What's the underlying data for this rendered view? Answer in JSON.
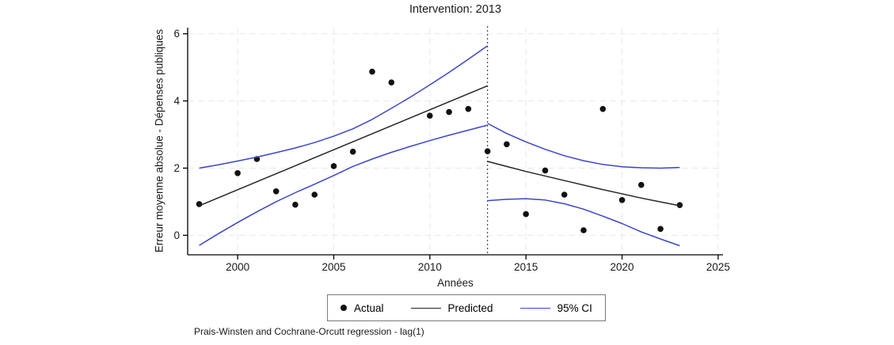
{
  "chart_data": {
    "type": "scatter",
    "title": "Intervention: 2013",
    "xlabel": "Années",
    "ylabel": "Erreur moyenne absolue - Dépenses publiques",
    "note": "Prais-Winsten and Cochrane-Orcutt regression - lag(1)",
    "intervention_x": 2013,
    "x_ticks": [
      2000,
      2005,
      2010,
      2015,
      2020,
      2025
    ],
    "y_ticks": [
      0,
      2,
      4,
      6
    ],
    "xlim": [
      1997.4,
      2025.25
    ],
    "ylim": [
      -0.58,
      6.18
    ],
    "grid": true,
    "legend_position": "bottom",
    "colors": {
      "actual": "#111111",
      "predicted": "#262626",
      "ci": "#3a46c8",
      "gridline": "#e9e9e9",
      "axis": "#000000",
      "intervention_line": "#454545"
    },
    "series": [
      {
        "name": "Actual",
        "kind": "scatter",
        "color": "#111111",
        "points": [
          [
            1998,
            0.93
          ],
          [
            2000,
            1.85
          ],
          [
            2001,
            2.27
          ],
          [
            2002,
            1.31
          ],
          [
            2003,
            0.91
          ],
          [
            2004,
            1.21
          ],
          [
            2005,
            2.06
          ],
          [
            2006,
            2.49
          ],
          [
            2007,
            4.87
          ],
          [
            2008,
            4.55
          ],
          [
            2010,
            3.56
          ],
          [
            2011,
            3.67
          ],
          [
            2012,
            3.76
          ],
          [
            2013,
            2.5
          ],
          [
            2014,
            2.71
          ],
          [
            2015,
            0.63
          ],
          [
            2016,
            1.93
          ],
          [
            2017,
            1.21
          ],
          [
            2018,
            0.15
          ],
          [
            2019,
            3.76
          ],
          [
            2020,
            1.05
          ],
          [
            2021,
            1.5
          ],
          [
            2022,
            0.19
          ],
          [
            2023,
            0.9
          ]
        ]
      },
      {
        "name": "Predicted (pre-intervention)",
        "kind": "line",
        "color": "#262626",
        "points": [
          [
            1998,
            0.88
          ],
          [
            2013,
            4.45
          ]
        ]
      },
      {
        "name": "Predicted (post-intervention)",
        "kind": "line",
        "color": "#262626",
        "points": [
          [
            2013,
            2.2
          ],
          [
            2015,
            1.9
          ],
          [
            2017,
            1.63
          ],
          [
            2019,
            1.36
          ],
          [
            2021,
            1.11
          ],
          [
            2023,
            0.88
          ]
        ]
      },
      {
        "name": "95% CI upper (pre)",
        "kind": "line",
        "color": "#3a46c8",
        "points": [
          [
            1998,
            2.0
          ],
          [
            1999,
            2.1
          ],
          [
            2000,
            2.21
          ],
          [
            2001,
            2.33
          ],
          [
            2002,
            2.46
          ],
          [
            2003,
            2.6
          ],
          [
            2004,
            2.76
          ],
          [
            2005,
            2.95
          ],
          [
            2006,
            3.17
          ],
          [
            2007,
            3.45
          ],
          [
            2008,
            3.78
          ],
          [
            2009,
            4.12
          ],
          [
            2010,
            4.48
          ],
          [
            2011,
            4.85
          ],
          [
            2012,
            5.24
          ],
          [
            2013,
            5.64
          ]
        ]
      },
      {
        "name": "95% CI lower (pre)",
        "kind": "line",
        "color": "#3a46c8",
        "points": [
          [
            1998,
            -0.3
          ],
          [
            1999,
            0.05
          ],
          [
            2000,
            0.38
          ],
          [
            2001,
            0.7
          ],
          [
            2002,
            1.0
          ],
          [
            2003,
            1.27
          ],
          [
            2004,
            1.52
          ],
          [
            2005,
            1.78
          ],
          [
            2006,
            2.05
          ],
          [
            2007,
            2.27
          ],
          [
            2008,
            2.47
          ],
          [
            2009,
            2.65
          ],
          [
            2010,
            2.82
          ],
          [
            2011,
            2.98
          ],
          [
            2012,
            3.13
          ],
          [
            2013,
            3.28
          ]
        ]
      },
      {
        "name": "95% CI upper (post)",
        "kind": "line",
        "color": "#3a46c8",
        "points": [
          [
            2013,
            3.33
          ],
          [
            2014,
            3.03
          ],
          [
            2015,
            2.78
          ],
          [
            2016,
            2.56
          ],
          [
            2017,
            2.37
          ],
          [
            2018,
            2.22
          ],
          [
            2019,
            2.11
          ],
          [
            2020,
            2.04
          ],
          [
            2021,
            2.01
          ],
          [
            2022,
            2.0
          ],
          [
            2023,
            2.02
          ]
        ]
      },
      {
        "name": "95% CI lower (post)",
        "kind": "line",
        "color": "#3a46c8",
        "points": [
          [
            2013,
            1.03
          ],
          [
            2014,
            1.07
          ],
          [
            2015,
            1.09
          ],
          [
            2016,
            1.05
          ],
          [
            2017,
            0.94
          ],
          [
            2018,
            0.78
          ],
          [
            2019,
            0.57
          ],
          [
            2020,
            0.35
          ],
          [
            2021,
            0.1
          ],
          [
            2022,
            -0.11
          ],
          [
            2023,
            -0.31
          ]
        ]
      }
    ]
  },
  "legend": {
    "items": [
      {
        "label": "Actual",
        "marker": "dot"
      },
      {
        "label": "Predicted",
        "marker": "black-line"
      },
      {
        "label": "95% CI",
        "marker": "blue-line"
      }
    ]
  }
}
